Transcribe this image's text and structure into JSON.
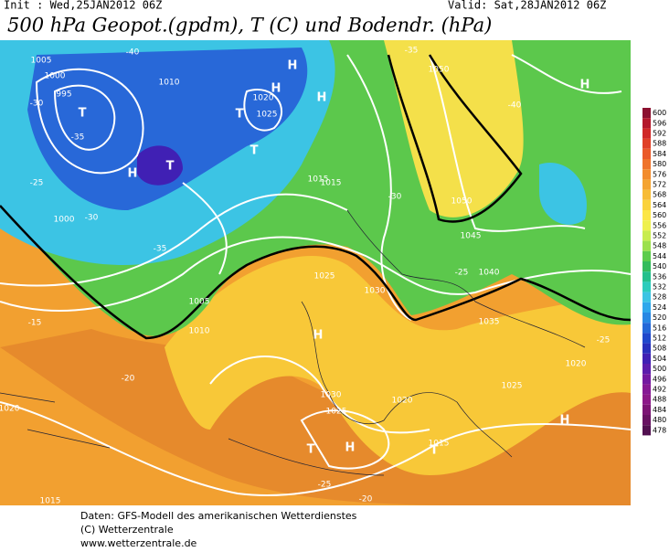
{
  "header": {
    "init": "Init : Wed,25JAN2012 06Z",
    "valid": "Valid: Sat,28JAN2012 06Z",
    "title": "500 hPa Geopot.(gpdm), T (C) und Bodendr. (hPa)"
  },
  "legend": {
    "levels": [
      600,
      596,
      592,
      588,
      584,
      580,
      576,
      572,
      568,
      564,
      560,
      556,
      552,
      548,
      544,
      540,
      536,
      532,
      528,
      524,
      520,
      516,
      512,
      508,
      504,
      500,
      496,
      492,
      488,
      484,
      480,
      478
    ],
    "colors": [
      "#8c1030",
      "#b4182c",
      "#d02828",
      "#e04028",
      "#ea5a2a",
      "#ef742c",
      "#f28c2e",
      "#f4a432",
      "#f7bc36",
      "#fad23c",
      "#fce646",
      "#eef04e",
      "#c8ec4e",
      "#9ce04c",
      "#5ccc4c",
      "#34bc5c",
      "#24c08c",
      "#2cccbc",
      "#3cc4e4",
      "#30a8ec",
      "#2888e4",
      "#2468d8",
      "#2048cc",
      "#2830bc",
      "#4020b4",
      "#5c1cac",
      "#7418a0",
      "#861894",
      "#8c1888",
      "#7c1474",
      "#681262",
      "#521050"
    ]
  },
  "map": {
    "labels": [
      "1005",
      "1000",
      "995",
      "T",
      "H",
      "-35",
      "-30",
      "-25",
      "-40",
      "1010",
      "1020",
      "1025",
      "1015",
      "H",
      "T",
      "T",
      "H",
      "H",
      "T",
      "1050",
      "-35",
      "-30",
      "1050",
      "1045",
      "1040",
      "-25",
      "1030",
      "1035",
      "1025",
      "-20",
      "1020",
      "1015",
      "T",
      "H",
      "T",
      "H",
      "-15",
      "1030",
      "1025",
      "1020",
      "1015",
      "-25",
      "-20",
      "-40",
      "H",
      "1020",
      "-25",
      "1000",
      "1005",
      "1010",
      "-35",
      "-30",
      "1015",
      "1025",
      "H"
    ]
  },
  "footer": {
    "line1": "Daten: GFS-Modell des amerikanischen Wetterdienstes",
    "line2": "(C) Wetterzentrale",
    "line3": "www.wetterzentrale.de"
  }
}
